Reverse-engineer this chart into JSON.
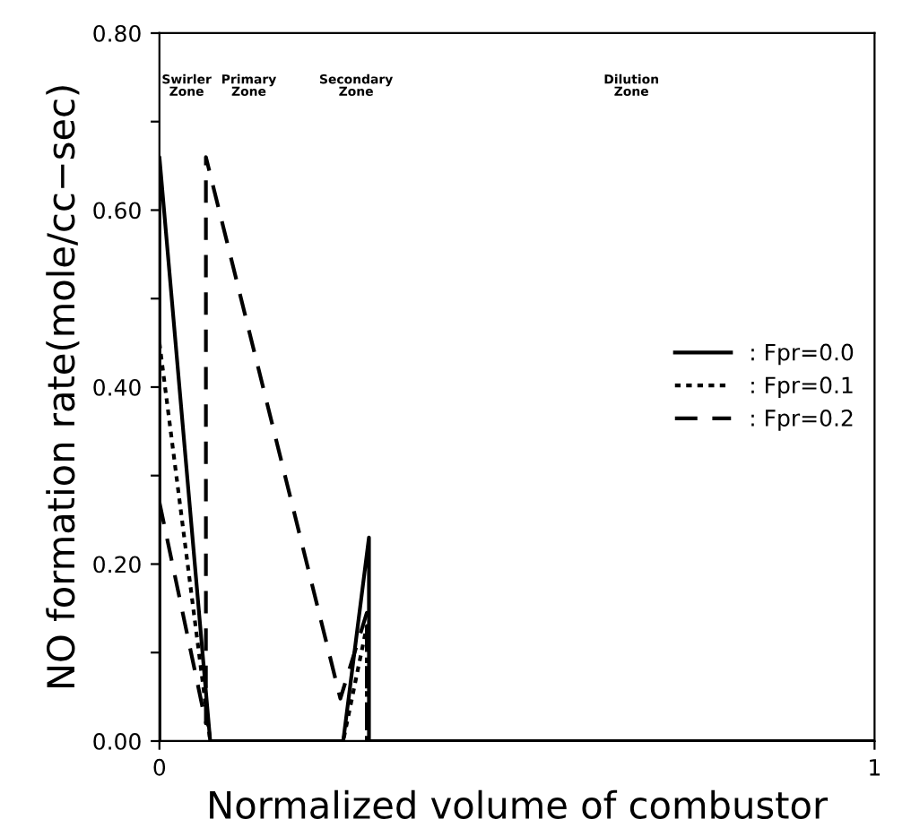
{
  "chart_data": {
    "type": "line",
    "xlabel": "Normalized volume of combustor",
    "ylabel": "NO formation rate(mole/cc−sec)",
    "xlim": [
      0,
      1
    ],
    "xticks": [
      0,
      1
    ],
    "ylim": [
      0,
      0.8
    ],
    "yticks": [
      {
        "value": 0,
        "label": "0.00"
      },
      {
        "value": 0.1,
        "label": null
      },
      {
        "value": 0.2,
        "label": "0.20"
      },
      {
        "value": 0.3,
        "label": null
      },
      {
        "value": 0.4,
        "label": "0.40"
      },
      {
        "value": 0.5,
        "label": null
      },
      {
        "value": 0.6,
        "label": "0.60"
      },
      {
        "value": 0.7,
        "label": null
      },
      {
        "value": 0.8,
        "label": "0.80"
      }
    ],
    "series": [
      {
        "name": ": Fpr=0.0",
        "color": "#000000",
        "line_style": "solid",
        "x": [
          0,
          0,
          0.071,
          0.257,
          0.293,
          0.293,
          1
        ],
        "values": [
          0,
          0.66,
          0,
          0,
          0.23,
          0,
          0
        ]
      },
      {
        "name": ": Fpr=0.1",
        "color": "#000000",
        "line_style": "dotted",
        "x": [
          0,
          0.071,
          0.257,
          0.29,
          0.29
        ],
        "values": [
          0.45,
          0,
          0,
          0.13,
          0
        ]
      },
      {
        "name": ": Fpr=0.2",
        "color": "#000000",
        "line_style": "dashed",
        "x": [
          0,
          0.065,
          0.065,
          0.253,
          0.29,
          0.29
        ],
        "values": [
          0.27,
          0.02,
          0.66,
          0.048,
          0.145,
          0
        ]
      }
    ],
    "annotations": [
      "Swirler\nZone",
      "Primary\nZone",
      "Secondary\nZone",
      "Dilution\nZone"
    ],
    "legend": "right",
    "grid": false,
    "marker": "none"
  }
}
